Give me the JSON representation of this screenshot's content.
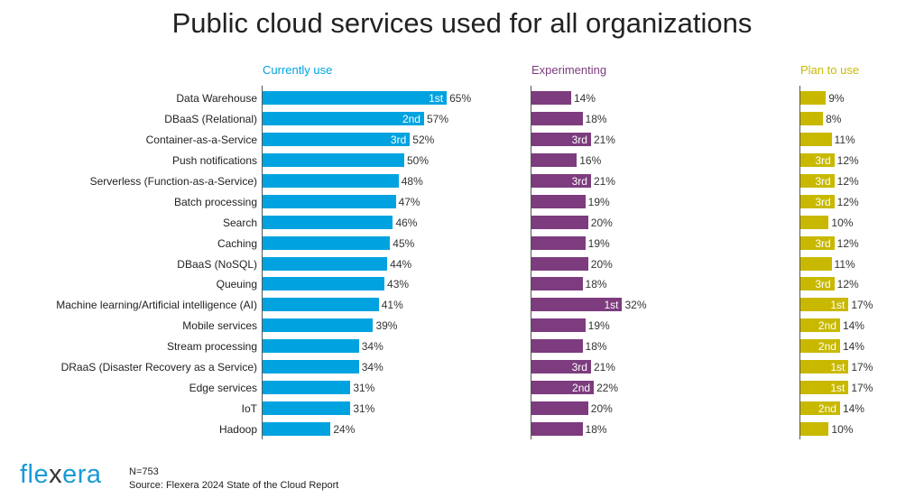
{
  "chart_data": {
    "type": "bar",
    "title": "Public cloud services used for all organizations",
    "categories": [
      "Data Warehouse",
      "DBaaS (Relational)",
      "Container-as-a-Service",
      "Push notifications",
      "Serverless (Function-as-a-Service)",
      "Batch processing",
      "Search",
      "Caching",
      "DBaaS (NoSQL)",
      "Queuing",
      "Machine learning/Artificial intelligence (AI)",
      "Mobile services",
      "Stream processing",
      "DRaaS (Disaster Recovery as a Service)",
      "Edge services",
      "IoT",
      "Hadoop"
    ],
    "series": [
      {
        "name": "Currently use",
        "color": "#00a3e0",
        "values": [
          65,
          57,
          52,
          50,
          48,
          47,
          46,
          45,
          44,
          43,
          41,
          39,
          34,
          34,
          31,
          31,
          24
        ],
        "ranks": [
          "1st",
          "2nd",
          "3rd",
          "",
          "",
          "",
          "",
          "",
          "",
          "",
          "",
          "",
          "",
          "",
          "",
          "",
          ""
        ]
      },
      {
        "name": "Experimenting",
        "color": "#7d3c7e",
        "values": [
          14,
          18,
          21,
          16,
          21,
          19,
          20,
          19,
          20,
          18,
          32,
          19,
          18,
          21,
          22,
          20,
          18
        ],
        "ranks": [
          "",
          "",
          "3rd",
          "",
          "3rd",
          "",
          "",
          "",
          "",
          "",
          "1st",
          "",
          "",
          "3rd",
          "2nd",
          "",
          ""
        ]
      },
      {
        "name": "Plan to use",
        "color": "#c8b900",
        "values": [
          9,
          8,
          11,
          12,
          12,
          12,
          10,
          12,
          11,
          12,
          17,
          14,
          14,
          17,
          17,
          14,
          10
        ],
        "ranks": [
          "",
          "",
          "",
          "3rd",
          "3rd",
          "3rd",
          "",
          "3rd",
          "",
          "3rd",
          "1st",
          "2nd",
          "2nd",
          "1st",
          "1st",
          "2nd",
          ""
        ]
      }
    ],
    "value_suffix": "%"
  },
  "footer": {
    "logo": "flexera",
    "n": "N=753",
    "source": "Source: Flexera 2024 State of the Cloud Report"
  }
}
